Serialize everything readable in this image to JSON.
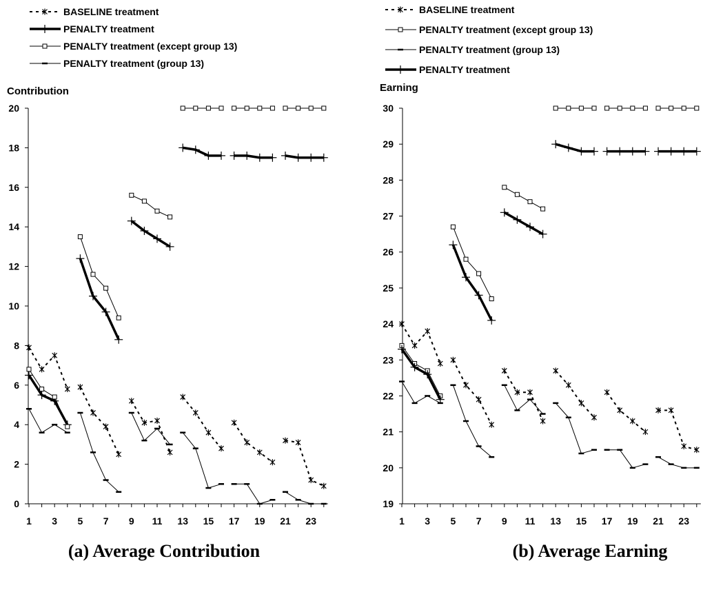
{
  "chart_data": [
    {
      "type": "line",
      "ylabel": "Contribution",
      "caption": "(a) Average Contribution",
      "ylim": [
        0,
        20
      ],
      "yticks": [
        0,
        2,
        4,
        6,
        8,
        10,
        12,
        14,
        16,
        18,
        20
      ],
      "xticks": [
        1,
        3,
        5,
        7,
        9,
        11,
        13,
        15,
        17,
        19,
        21,
        23
      ],
      "x": [
        1,
        2,
        3,
        4,
        5,
        6,
        7,
        8,
        9,
        10,
        11,
        12,
        13,
        14,
        15,
        16,
        17,
        18,
        19,
        20,
        21,
        22,
        23,
        24
      ],
      "segments": [
        [
          1,
          4
        ],
        [
          5,
          8
        ],
        [
          9,
          12
        ],
        [
          13,
          16
        ],
        [
          17,
          20
        ],
        [
          21,
          24
        ]
      ],
      "grid": false,
      "legend": {
        "position": "top-left"
      },
      "series": [
        {
          "name": "BASELINE treatment",
          "key": "baseline",
          "style": "dashed-star",
          "values": [
            7.9,
            6.8,
            7.5,
            5.8,
            5.9,
            4.6,
            3.9,
            2.5,
            5.2,
            4.1,
            4.2,
            2.6,
            5.4,
            4.6,
            3.6,
            2.8,
            4.1,
            3.1,
            2.6,
            2.1,
            3.2,
            3.1,
            1.2,
            0.9
          ]
        },
        {
          "name": "PENALTY treatment",
          "key": "penalty",
          "style": "thick-plus",
          "values": [
            6.5,
            5.5,
            5.2,
            4.0,
            12.4,
            10.5,
            9.7,
            8.3,
            14.3,
            13.8,
            13.4,
            13.0,
            18.0,
            17.9,
            17.6,
            17.6,
            17.6,
            17.6,
            17.5,
            17.5,
            17.6,
            17.5,
            17.5,
            17.5
          ]
        },
        {
          "name": "PENALTY treatment (except group 13)",
          "key": "except13",
          "style": "thin-square",
          "values": [
            6.8,
            5.8,
            5.4,
            3.9,
            13.5,
            11.6,
            10.9,
            9.4,
            15.6,
            15.3,
            14.8,
            14.5,
            20.0,
            20.0,
            20.0,
            20.0,
            20.0,
            20.0,
            20.0,
            20.0,
            20.0,
            20.0,
            20.0,
            20.0
          ]
        },
        {
          "name": "PENALTY treatment (group 13)",
          "key": "group13",
          "style": "thin-dash",
          "values": [
            4.8,
            3.6,
            4.0,
            3.6,
            4.6,
            2.6,
            1.2,
            0.6,
            4.6,
            3.2,
            3.8,
            3.0,
            3.6,
            2.8,
            0.8,
            1.0,
            1.0,
            1.0,
            0.0,
            0.2,
            0.6,
            0.2,
            0.0,
            0.0
          ]
        }
      ]
    },
    {
      "type": "line",
      "ylabel": "Earning",
      "caption": "(b) Average Earning",
      "ylim": [
        19,
        30
      ],
      "yticks": [
        19,
        20,
        21,
        22,
        23,
        24,
        25,
        26,
        27,
        28,
        29,
        30
      ],
      "xticks": [
        1,
        3,
        5,
        7,
        9,
        11,
        13,
        15,
        17,
        19,
        21,
        23
      ],
      "x": [
        1,
        2,
        3,
        4,
        5,
        6,
        7,
        8,
        9,
        10,
        11,
        12,
        13,
        14,
        15,
        16,
        17,
        18,
        19,
        20,
        21,
        22,
        23,
        24
      ],
      "segments": [
        [
          1,
          4
        ],
        [
          5,
          8
        ],
        [
          9,
          12
        ],
        [
          13,
          16
        ],
        [
          17,
          20
        ],
        [
          21,
          24
        ]
      ],
      "grid": false,
      "legend": {
        "position": "top-left"
      },
      "series": [
        {
          "name": "BASELINE treatment",
          "key": "baseline",
          "style": "dashed-star",
          "values": [
            24.0,
            23.4,
            23.8,
            22.9,
            23.0,
            22.3,
            21.9,
            21.2,
            22.7,
            22.1,
            22.1,
            21.3,
            22.7,
            22.3,
            21.8,
            21.4,
            22.1,
            21.6,
            21.3,
            21.0,
            21.6,
            21.6,
            20.6,
            20.5
          ]
        },
        {
          "name": "PENALTY treatment (except group 13)",
          "key": "except13",
          "style": "thin-square",
          "values": [
            23.4,
            22.9,
            22.7,
            22.0,
            26.7,
            25.8,
            25.4,
            24.7,
            27.8,
            27.6,
            27.4,
            27.2,
            30.0,
            30.0,
            30.0,
            30.0,
            30.0,
            30.0,
            30.0,
            30.0,
            30.0,
            30.0,
            30.0,
            30.0
          ]
        },
        {
          "name": "PENALTY treatment (group 13)",
          "key": "group13",
          "style": "thin-dash",
          "values": [
            22.4,
            21.8,
            22.0,
            21.8,
            22.3,
            21.3,
            20.6,
            20.3,
            22.3,
            21.6,
            21.9,
            21.5,
            21.8,
            21.4,
            20.4,
            20.5,
            20.5,
            20.5,
            20.0,
            20.1,
            20.3,
            20.1,
            20.0,
            20.0
          ]
        },
        {
          "name": "PENALTY treatment",
          "key": "penalty",
          "style": "thick-plus",
          "values": [
            23.3,
            22.8,
            22.6,
            21.9,
            26.2,
            25.3,
            24.8,
            24.1,
            27.1,
            26.9,
            26.7,
            26.5,
            29.0,
            28.9,
            28.8,
            28.8,
            28.8,
            28.8,
            28.8,
            28.8,
            28.8,
            28.8,
            28.8,
            28.8
          ]
        }
      ]
    }
  ]
}
